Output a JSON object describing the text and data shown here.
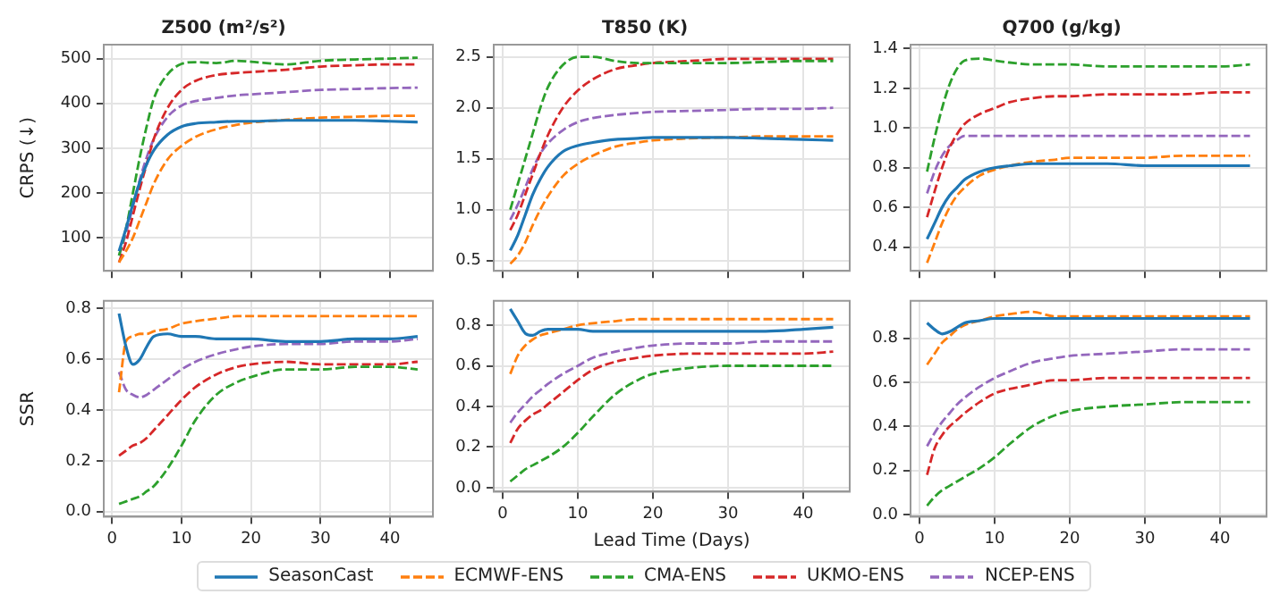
{
  "chart_data": [
    {
      "type": "line",
      "title": "Z500 (m²/s²)",
      "ylabel": "CRPS (↓)",
      "tick_labels": "y",
      "grid": true,
      "x": [
        1,
        2,
        3,
        4,
        5,
        6,
        8,
        10,
        12,
        15,
        18,
        20,
        25,
        30,
        35,
        40,
        44
      ],
      "xlim": [
        -1.2,
        46.2
      ],
      "xticks": [
        0,
        10,
        20,
        30,
        40
      ],
      "ylim": [
        26,
        531
      ],
      "yticks": [
        100,
        200,
        300,
        400,
        500
      ],
      "series": [
        {
          "color": "#1f77b4",
          "line_style": "solid",
          "values": [
            70,
            120,
            175,
            225,
            265,
            295,
            330,
            348,
            355,
            358,
            360,
            360,
            362,
            362,
            362,
            360,
            358
          ]
        },
        {
          "color": "#ff7f0e",
          "line_style": "dashed",
          "values": [
            45,
            70,
            100,
            140,
            180,
            220,
            275,
            305,
            325,
            342,
            352,
            357,
            363,
            368,
            370,
            372,
            372
          ]
        },
        {
          "color": "#2ca02c",
          "line_style": "dashed",
          "values": [
            60,
            120,
            200,
            280,
            350,
            410,
            465,
            488,
            492,
            490,
            495,
            493,
            487,
            495,
            498,
            500,
            502
          ]
        },
        {
          "color": "#d62728",
          "line_style": "dashed",
          "values": [
            45,
            90,
            150,
            210,
            265,
            320,
            390,
            430,
            450,
            463,
            468,
            470,
            475,
            482,
            485,
            487,
            487
          ]
        },
        {
          "color": "#9467bd",
          "line_style": "dashed",
          "values": [
            60,
            110,
            170,
            230,
            280,
            320,
            370,
            395,
            405,
            412,
            418,
            420,
            425,
            430,
            432,
            434,
            435
          ]
        }
      ]
    },
    {
      "type": "line",
      "title": "T850 (K)",
      "tick_labels": "y",
      "grid": true,
      "x": [
        1,
        2,
        3,
        4,
        5,
        6,
        8,
        10,
        12,
        15,
        18,
        20,
        25,
        30,
        35,
        40,
        44
      ],
      "xlim": [
        -1.2,
        46.2
      ],
      "xticks": [
        0,
        10,
        20,
        30,
        40
      ],
      "ylim": [
        0.4,
        2.62
      ],
      "yticks": [
        0.5,
        {
          "value": 1,
          "label": "1.0"
        },
        1.5,
        {
          "value": 2,
          "label": "2.0"
        },
        2.5
      ],
      "series": [
        {
          "color": "#1f77b4",
          "line_style": "solid",
          "values": [
            0.6,
            0.75,
            0.95,
            1.15,
            1.3,
            1.42,
            1.57,
            1.63,
            1.66,
            1.69,
            1.7,
            1.71,
            1.71,
            1.71,
            1.7,
            1.69,
            1.68
          ]
        },
        {
          "color": "#ff7f0e",
          "line_style": "dashed",
          "values": [
            0.47,
            0.55,
            0.68,
            0.85,
            1.0,
            1.13,
            1.33,
            1.45,
            1.53,
            1.62,
            1.66,
            1.68,
            1.7,
            1.71,
            1.72,
            1.72,
            1.72
          ]
        },
        {
          "color": "#2ca02c",
          "line_style": "dashed",
          "values": [
            1.0,
            1.25,
            1.5,
            1.75,
            2.0,
            2.2,
            2.42,
            2.5,
            2.5,
            2.46,
            2.44,
            2.44,
            2.44,
            2.44,
            2.45,
            2.46,
            2.46
          ]
        },
        {
          "color": "#d62728",
          "line_style": "dashed",
          "values": [
            0.8,
            0.95,
            1.15,
            1.35,
            1.55,
            1.73,
            2.0,
            2.17,
            2.28,
            2.38,
            2.42,
            2.44,
            2.46,
            2.48,
            2.48,
            2.48,
            2.48
          ]
        },
        {
          "color": "#9467bd",
          "line_style": "dashed",
          "values": [
            0.9,
            1.05,
            1.22,
            1.4,
            1.55,
            1.65,
            1.78,
            1.86,
            1.9,
            1.93,
            1.95,
            1.96,
            1.97,
            1.98,
            1.99,
            1.99,
            2.0
          ]
        }
      ]
    },
    {
      "type": "line",
      "title": "Q700 (g/kg)",
      "tick_labels": "y",
      "grid": true,
      "x": [
        1,
        2,
        3,
        4,
        5,
        6,
        8,
        10,
        12,
        15,
        18,
        20,
        25,
        30,
        35,
        40,
        44
      ],
      "xlim": [
        -1.2,
        46.2
      ],
      "xticks": [
        0,
        10,
        20,
        30,
        40
      ],
      "ylim": [
        0.28,
        1.42
      ],
      "yticks": [
        0.4,
        0.6,
        0.8,
        {
          "value": 1,
          "label": "1.0"
        },
        1.2,
        1.4
      ],
      "series": [
        {
          "color": "#1f77b4",
          "line_style": "solid",
          "values": [
            0.44,
            0.52,
            0.6,
            0.66,
            0.7,
            0.74,
            0.78,
            0.8,
            0.81,
            0.82,
            0.82,
            0.82,
            0.82,
            0.81,
            0.81,
            0.81,
            0.81
          ]
        },
        {
          "color": "#ff7f0e",
          "line_style": "dashed",
          "values": [
            0.32,
            0.42,
            0.52,
            0.6,
            0.66,
            0.7,
            0.76,
            0.79,
            0.81,
            0.83,
            0.84,
            0.85,
            0.85,
            0.85,
            0.86,
            0.86,
            0.86
          ]
        },
        {
          "color": "#2ca02c",
          "line_style": "dashed",
          "values": [
            0.78,
            0.95,
            1.1,
            1.22,
            1.3,
            1.34,
            1.35,
            1.34,
            1.33,
            1.32,
            1.32,
            1.32,
            1.31,
            1.31,
            1.31,
            1.31,
            1.32
          ]
        },
        {
          "color": "#d62728",
          "line_style": "dashed",
          "values": [
            0.55,
            0.68,
            0.8,
            0.9,
            0.97,
            1.02,
            1.07,
            1.1,
            1.13,
            1.15,
            1.16,
            1.16,
            1.17,
            1.17,
            1.17,
            1.18,
            1.18
          ]
        },
        {
          "color": "#9467bd",
          "line_style": "dashed",
          "values": [
            0.67,
            0.78,
            0.86,
            0.91,
            0.94,
            0.96,
            0.96,
            0.96,
            0.96,
            0.96,
            0.96,
            0.96,
            0.96,
            0.96,
            0.96,
            0.96,
            0.96
          ]
        }
      ]
    },
    {
      "type": "line",
      "ylabel": "SSR",
      "grid": true,
      "x": [
        1,
        2,
        3,
        4,
        5,
        6,
        8,
        10,
        12,
        15,
        18,
        20,
        25,
        30,
        35,
        40,
        44
      ],
      "xlim": [
        -1.2,
        46.2
      ],
      "xticks": [
        0,
        10,
        20,
        30,
        40
      ],
      "ylim": [
        -0.02,
        0.83
      ],
      "yticks": [
        {
          "value": 0,
          "label": "0.0"
        },
        0.2,
        0.4,
        0.6,
        0.8
      ],
      "series": [
        {
          "color": "#1f77b4",
          "line_style": "solid",
          "values": [
            0.78,
            0.65,
            0.58,
            0.6,
            0.65,
            0.69,
            0.7,
            0.69,
            0.69,
            0.68,
            0.68,
            0.68,
            0.67,
            0.67,
            0.68,
            0.68,
            0.69
          ]
        },
        {
          "color": "#ff7f0e",
          "line_style": "dashed",
          "values": [
            0.47,
            0.67,
            0.69,
            0.7,
            0.7,
            0.71,
            0.72,
            0.74,
            0.75,
            0.76,
            0.77,
            0.77,
            0.77,
            0.77,
            0.77,
            0.77,
            0.77
          ]
        },
        {
          "color": "#2ca02c",
          "line_style": "dashed",
          "values": [
            0.03,
            0.04,
            0.05,
            0.06,
            0.08,
            0.1,
            0.17,
            0.26,
            0.36,
            0.46,
            0.51,
            0.53,
            0.56,
            0.56,
            0.57,
            0.57,
            0.56
          ]
        },
        {
          "color": "#d62728",
          "line_style": "dashed",
          "values": [
            0.22,
            0.24,
            0.26,
            0.27,
            0.29,
            0.32,
            0.38,
            0.44,
            0.49,
            0.54,
            0.57,
            0.58,
            0.59,
            0.58,
            0.58,
            0.58,
            0.59
          ]
        },
        {
          "color": "#9467bd",
          "line_style": "dashed",
          "values": [
            0.55,
            0.48,
            0.46,
            0.45,
            0.46,
            0.48,
            0.52,
            0.56,
            0.59,
            0.62,
            0.64,
            0.65,
            0.66,
            0.66,
            0.67,
            0.67,
            0.68
          ]
        }
      ]
    },
    {
      "type": "line",
      "xlabel": "Lead Time (Days)",
      "legend": "bottom",
      "grid": true,
      "x": [
        1,
        2,
        3,
        4,
        5,
        6,
        8,
        10,
        12,
        15,
        18,
        20,
        25,
        30,
        35,
        40,
        44
      ],
      "xlim": [
        -1.2,
        46.2
      ],
      "xticks": [
        0,
        10,
        20,
        30,
        40
      ],
      "ylim": [
        -0.02,
        0.92
      ],
      "yticks": [
        {
          "value": 0,
          "label": "0.0"
        },
        0.2,
        0.4,
        0.6,
        0.8
      ],
      "series": [
        {
          "name": "SeasonCast",
          "color": "#1f77b4",
          "line_style": "solid",
          "values": [
            0.88,
            0.82,
            0.76,
            0.75,
            0.77,
            0.78,
            0.78,
            0.78,
            0.77,
            0.77,
            0.77,
            0.77,
            0.77,
            0.77,
            0.77,
            0.78,
            0.79
          ]
        },
        {
          "name": "ECMWF-ENS",
          "color": "#ff7f0e",
          "line_style": "dashed",
          "values": [
            0.56,
            0.65,
            0.7,
            0.73,
            0.75,
            0.76,
            0.78,
            0.8,
            0.81,
            0.82,
            0.83,
            0.83,
            0.83,
            0.83,
            0.83,
            0.83,
            0.83
          ]
        },
        {
          "name": "CMA-ENS",
          "color": "#2ca02c",
          "line_style": "dashed",
          "values": [
            0.03,
            0.06,
            0.09,
            0.11,
            0.13,
            0.15,
            0.2,
            0.27,
            0.35,
            0.46,
            0.53,
            0.56,
            0.59,
            0.6,
            0.6,
            0.6,
            0.6
          ]
        },
        {
          "name": "UKMO-ENS",
          "color": "#d62728",
          "line_style": "dashed",
          "values": [
            0.22,
            0.29,
            0.33,
            0.36,
            0.38,
            0.41,
            0.47,
            0.53,
            0.58,
            0.62,
            0.64,
            0.65,
            0.66,
            0.66,
            0.66,
            0.66,
            0.67
          ]
        },
        {
          "name": "NCEP-ENS",
          "color": "#9467bd",
          "line_style": "dashed",
          "values": [
            0.32,
            0.37,
            0.41,
            0.45,
            0.48,
            0.51,
            0.56,
            0.6,
            0.64,
            0.67,
            0.69,
            0.7,
            0.71,
            0.71,
            0.72,
            0.72,
            0.72
          ]
        }
      ]
    },
    {
      "type": "line",
      "grid": true,
      "x": [
        1,
        2,
        3,
        4,
        5,
        6,
        8,
        10,
        12,
        15,
        18,
        20,
        25,
        30,
        35,
        40,
        44
      ],
      "xlim": [
        -1.2,
        46.2
      ],
      "xticks": [
        0,
        10,
        20,
        30,
        40
      ],
      "ylim": [
        -0.01,
        0.97
      ],
      "yticks": [
        {
          "value": 0,
          "label": "0.0"
        },
        0.2,
        0.4,
        0.6,
        0.8
      ],
      "series": [
        {
          "color": "#1f77b4",
          "line_style": "solid",
          "values": [
            0.87,
            0.84,
            0.82,
            0.83,
            0.85,
            0.87,
            0.88,
            0.89,
            0.89,
            0.89,
            0.89,
            0.89,
            0.89,
            0.89,
            0.89,
            0.89,
            0.89
          ]
        },
        {
          "color": "#ff7f0e",
          "line_style": "dashed",
          "values": [
            0.68,
            0.73,
            0.78,
            0.81,
            0.84,
            0.86,
            0.88,
            0.9,
            0.91,
            0.92,
            0.9,
            0.9,
            0.9,
            0.9,
            0.9,
            0.9,
            0.9
          ]
        },
        {
          "color": "#2ca02c",
          "line_style": "dashed",
          "values": [
            0.04,
            0.08,
            0.11,
            0.13,
            0.15,
            0.17,
            0.21,
            0.26,
            0.32,
            0.4,
            0.45,
            0.47,
            0.49,
            0.5,
            0.51,
            0.51,
            0.51
          ]
        },
        {
          "color": "#d62728",
          "line_style": "dashed",
          "values": [
            0.18,
            0.3,
            0.36,
            0.4,
            0.43,
            0.46,
            0.51,
            0.55,
            0.57,
            0.59,
            0.61,
            0.61,
            0.62,
            0.62,
            0.62,
            0.62,
            0.62
          ]
        },
        {
          "color": "#9467bd",
          "line_style": "dashed",
          "values": [
            0.31,
            0.37,
            0.42,
            0.46,
            0.5,
            0.53,
            0.58,
            0.62,
            0.65,
            0.69,
            0.71,
            0.72,
            0.73,
            0.74,
            0.75,
            0.75,
            0.75
          ]
        }
      ]
    }
  ]
}
